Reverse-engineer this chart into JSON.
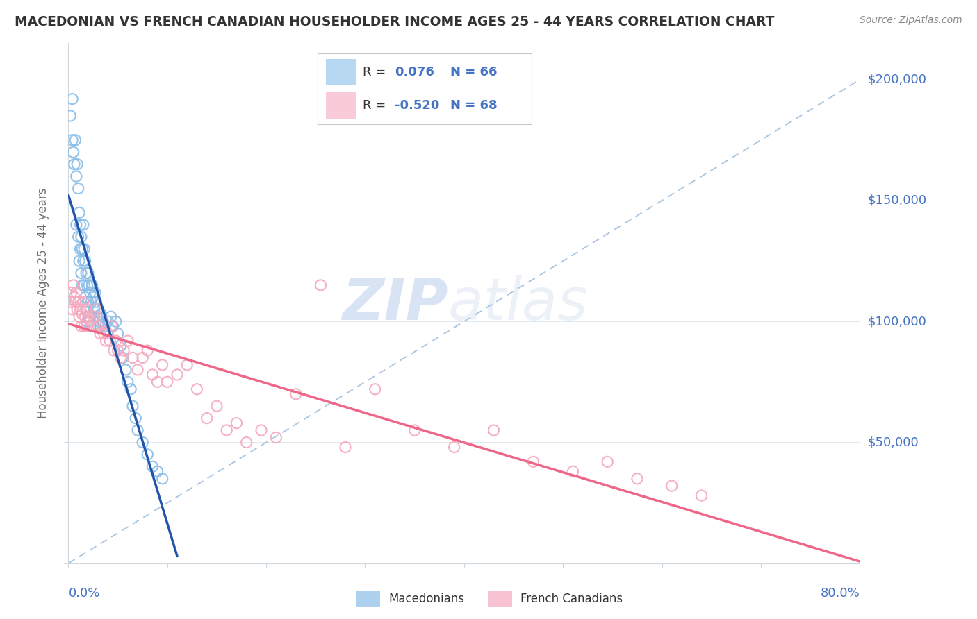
{
  "title": "MACEDONIAN VS FRENCH CANADIAN HOUSEHOLDER INCOME AGES 25 - 44 YEARS CORRELATION CHART",
  "source": "Source: ZipAtlas.com",
  "ylabel": "Householder Income Ages 25 - 44 years",
  "watermark_zip": "ZIP",
  "watermark_atlas": "atlas",
  "mac_color": "#89bde8",
  "mac_edge_color": "#89bde8",
  "fc_color": "#f5a8be",
  "fc_edge_color": "#f5a8be",
  "mac_trend_color": "#2255aa",
  "fc_trend_color": "#ee6688",
  "dashed_line_color": "#a8c4e0",
  "background_color": "#ffffff",
  "mac_x": [
    0.002,
    0.004,
    0.004,
    0.005,
    0.006,
    0.007,
    0.008,
    0.008,
    0.009,
    0.01,
    0.01,
    0.011,
    0.011,
    0.012,
    0.012,
    0.013,
    0.013,
    0.014,
    0.014,
    0.015,
    0.015,
    0.016,
    0.016,
    0.017,
    0.017,
    0.018,
    0.018,
    0.019,
    0.019,
    0.02,
    0.02,
    0.021,
    0.021,
    0.022,
    0.022,
    0.023,
    0.024,
    0.025,
    0.026,
    0.027,
    0.028,
    0.029,
    0.03,
    0.031,
    0.032,
    0.033,
    0.035,
    0.037,
    0.04,
    0.043,
    0.045,
    0.048,
    0.05,
    0.053,
    0.055,
    0.058,
    0.06,
    0.063,
    0.065,
    0.068,
    0.07,
    0.075,
    0.08,
    0.085,
    0.09,
    0.095
  ],
  "mac_y": [
    185000,
    192000,
    175000,
    170000,
    165000,
    175000,
    160000,
    140000,
    165000,
    155000,
    135000,
    145000,
    125000,
    140000,
    130000,
    135000,
    120000,
    130000,
    115000,
    140000,
    125000,
    130000,
    115000,
    125000,
    110000,
    120000,
    105000,
    115000,
    100000,
    120000,
    108000,
    115000,
    102000,
    112000,
    98000,
    108000,
    115000,
    110000,
    105000,
    112000,
    108000,
    102000,
    105000,
    100000,
    98000,
    103000,
    100000,
    98000,
    100000,
    102000,
    98000,
    100000,
    95000,
    90000,
    85000,
    80000,
    75000,
    72000,
    65000,
    60000,
    55000,
    50000,
    45000,
    40000,
    38000,
    35000
  ],
  "fc_x": [
    0.002,
    0.003,
    0.004,
    0.005,
    0.006,
    0.007,
    0.008,
    0.009,
    0.01,
    0.011,
    0.012,
    0.013,
    0.014,
    0.015,
    0.016,
    0.017,
    0.018,
    0.019,
    0.02,
    0.022,
    0.024,
    0.026,
    0.028,
    0.03,
    0.032,
    0.034,
    0.036,
    0.038,
    0.04,
    0.042,
    0.044,
    0.046,
    0.048,
    0.05,
    0.053,
    0.056,
    0.06,
    0.065,
    0.07,
    0.075,
    0.08,
    0.085,
    0.09,
    0.095,
    0.1,
    0.11,
    0.12,
    0.13,
    0.14,
    0.15,
    0.16,
    0.17,
    0.18,
    0.195,
    0.21,
    0.23,
    0.255,
    0.28,
    0.31,
    0.35,
    0.39,
    0.43,
    0.47,
    0.51,
    0.545,
    0.575,
    0.61,
    0.64
  ],
  "fc_y": [
    108000,
    112000,
    105000,
    115000,
    110000,
    108000,
    112000,
    105000,
    108000,
    102000,
    105000,
    98000,
    103000,
    108000,
    98000,
    102000,
    105000,
    98000,
    102000,
    100000,
    98000,
    102000,
    105000,
    98000,
    95000,
    100000,
    95000,
    92000,
    95000,
    92000,
    98000,
    88000,
    92000,
    88000,
    85000,
    88000,
    92000,
    85000,
    80000,
    85000,
    88000,
    78000,
    75000,
    82000,
    75000,
    78000,
    82000,
    72000,
    60000,
    65000,
    55000,
    58000,
    50000,
    55000,
    52000,
    70000,
    115000,
    48000,
    72000,
    55000,
    48000,
    55000,
    42000,
    38000,
    42000,
    35000,
    32000,
    28000
  ],
  "xlim": [
    0.0,
    0.8
  ],
  "ylim": [
    0,
    215000
  ],
  "ytick_vals": [
    50000,
    100000,
    150000,
    200000
  ],
  "ytick_labels": [
    "$50,000",
    "$100,000",
    "$150,000",
    "$200,000"
  ]
}
